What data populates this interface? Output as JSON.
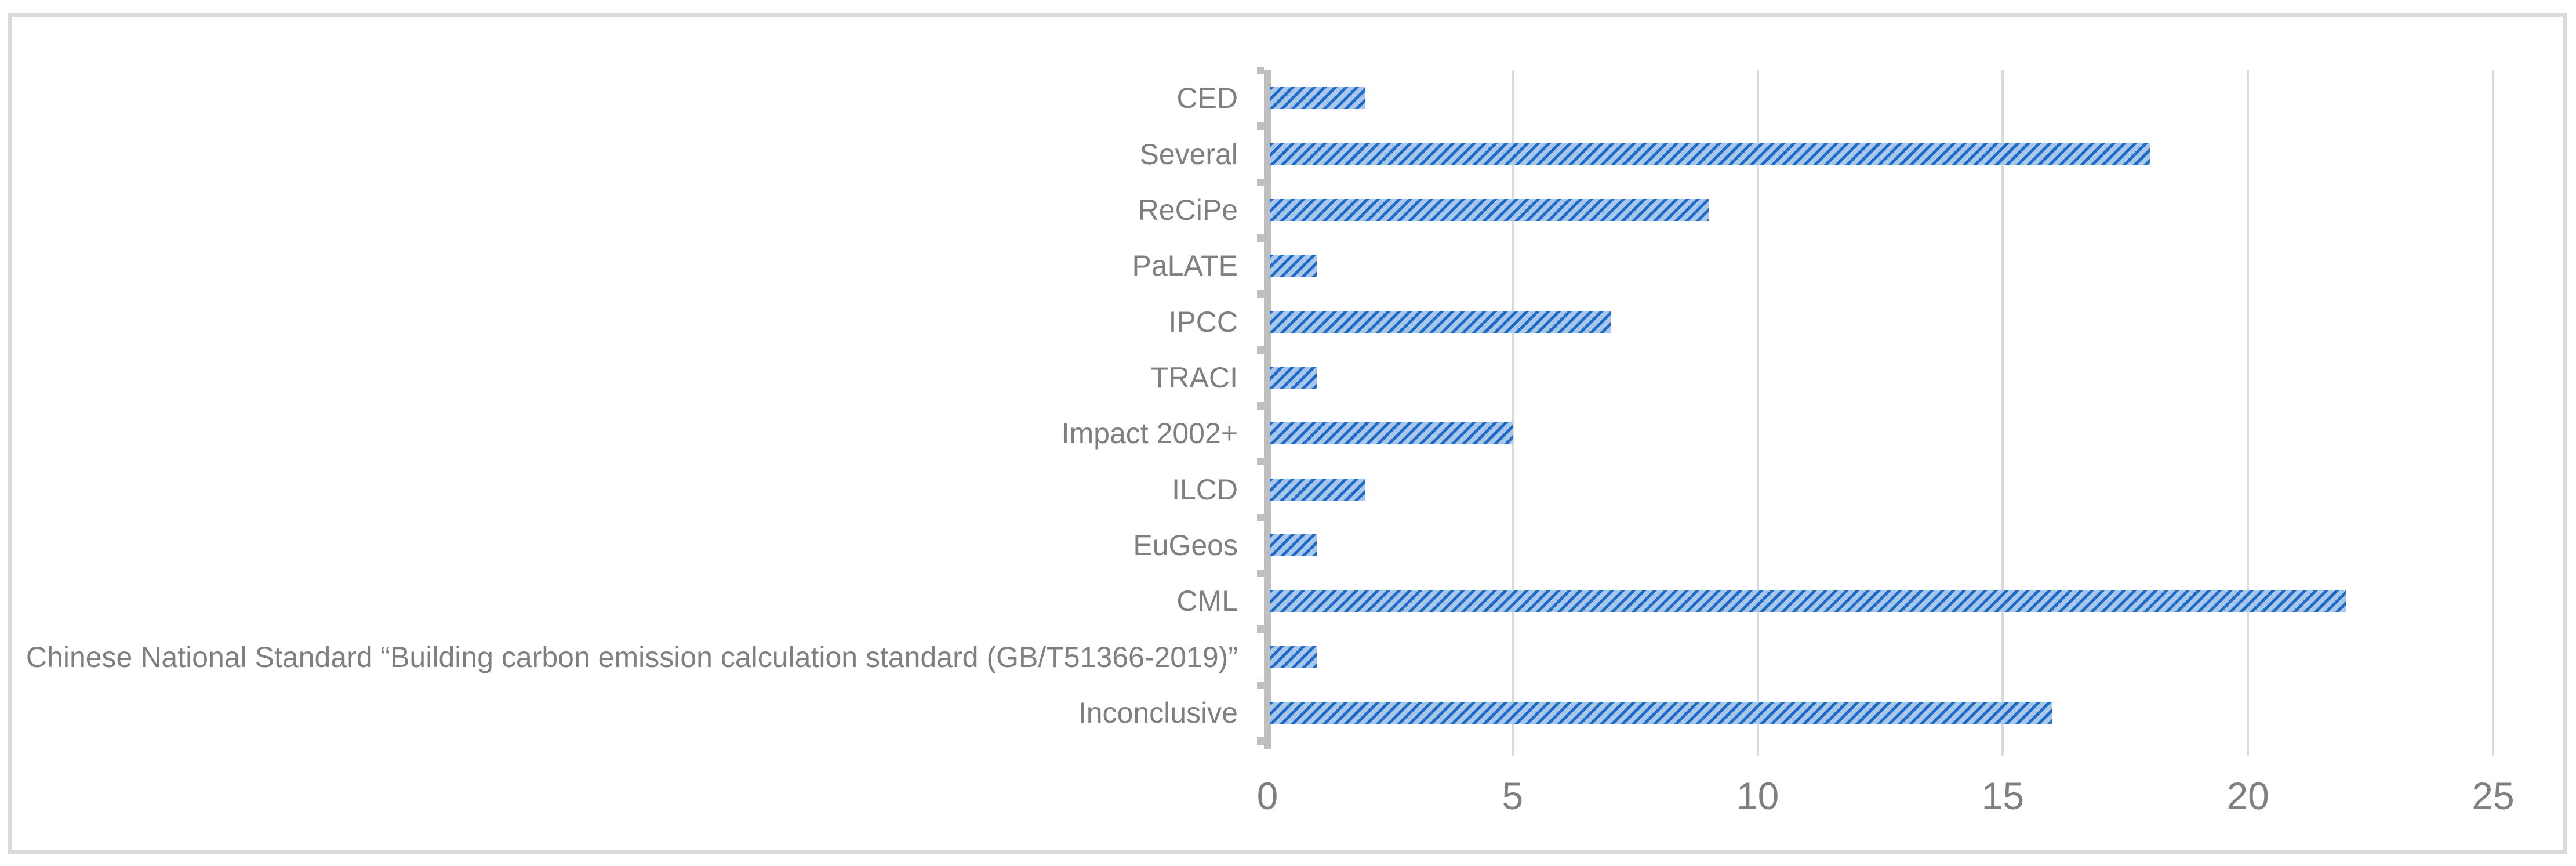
{
  "chart_data": {
    "type": "bar",
    "orientation": "horizontal",
    "title": "",
    "categories": [
      "CED",
      "Several",
      "ReCiPe",
      "PaLATE",
      "IPCC",
      "TRACI",
      "Impact 2002+",
      "ILCD",
      "EuGeos",
      "CML",
      "Chinese National Standard “Building carbon emission calculation standard (GB/T51366-2019)”",
      "Inconclusive"
    ],
    "values": [
      2,
      18,
      9,
      1,
      7,
      1,
      5,
      2,
      1,
      22,
      1,
      16
    ],
    "x_ticks": [
      "0",
      "5",
      "10",
      "15",
      "20",
      "25"
    ],
    "xlim": [
      0,
      25
    ],
    "gridlines": "vertical, at x-axis ticks",
    "legend": "none",
    "colors": {
      "bar_fill": "#a8c7eb",
      "bar_hatch_stripe": "#1e6bc8",
      "axis_line": "#bfbfbf",
      "gridline": "#d9d9d9",
      "frame_border": "#dbdbdb",
      "label_text": "#7f7f7f",
      "background": "#ffffff"
    }
  }
}
